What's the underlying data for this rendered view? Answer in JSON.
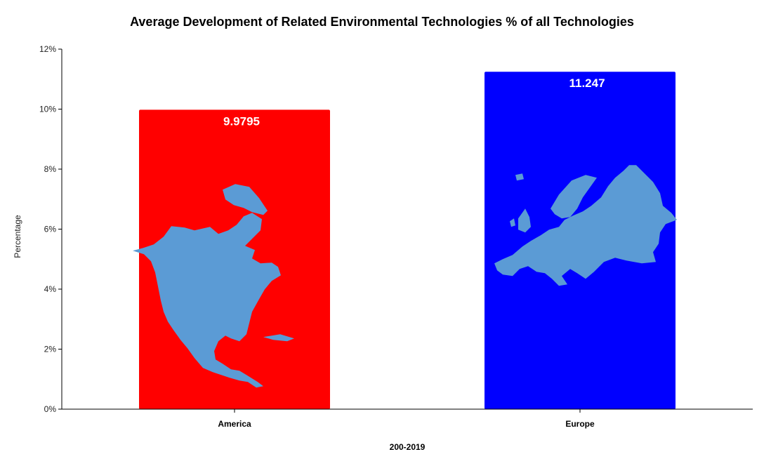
{
  "chart_data": {
    "type": "bar",
    "title": "Average  Development of Related Environmental Technologies  % of all Technologies",
    "xlabel": "200-2019",
    "ylabel": "Percentage",
    "categories": [
      "America",
      "Europe"
    ],
    "values": [
      9.9795,
      11.247
    ],
    "data_labels": [
      "9.9795",
      "11.247"
    ],
    "ylim": [
      0,
      12
    ],
    "yticks": [
      "0%",
      "2%",
      "4%",
      "6%",
      "8%",
      "10%",
      "12%"
    ],
    "ytick_values": [
      0,
      2,
      4,
      6,
      8,
      10,
      12
    ],
    "grid": false,
    "legend": "none",
    "colors": [
      "#ff0000",
      "#0000ff"
    ],
    "map_color": "#5b9bd5",
    "bar_icons": [
      "north-america-map-icon",
      "europe-map-icon"
    ]
  }
}
